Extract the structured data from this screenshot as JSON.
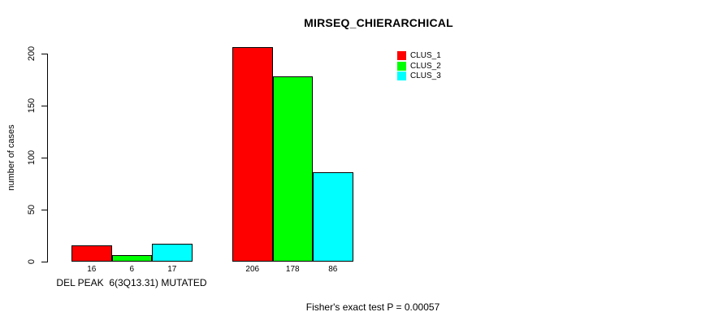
{
  "colors": {
    "background": "#ffffff",
    "text": "#000000",
    "bar_border": "#000000",
    "clus1": "#ff0000",
    "clus2": "#00ff00",
    "clus3": "#00ffff"
  },
  "chart_data": {
    "type": "bar",
    "title": "MIRSEQ_CHIERARCHICAL",
    "ylabel": "number of cases",
    "xlabel": "",
    "categories": [
      "DEL PEAK  6(3Q13.31) MUTATED",
      ""
    ],
    "series": [
      {
        "name": "CLUS_1",
        "color": "#ff0000",
        "values": [
          16,
          206
        ]
      },
      {
        "name": "CLUS_2",
        "color": "#00ff00",
        "values": [
          6,
          178
        ]
      },
      {
        "name": "CLUS_3",
        "color": "#00ffff",
        "values": [
          17,
          86
        ]
      }
    ],
    "yticks": [
      0,
      50,
      100,
      150,
      200
    ],
    "ylim": [
      0,
      200
    ],
    "grid": false,
    "legend_position": "top-right",
    "annotation": "Fisher's exact test P = 0.00057"
  }
}
